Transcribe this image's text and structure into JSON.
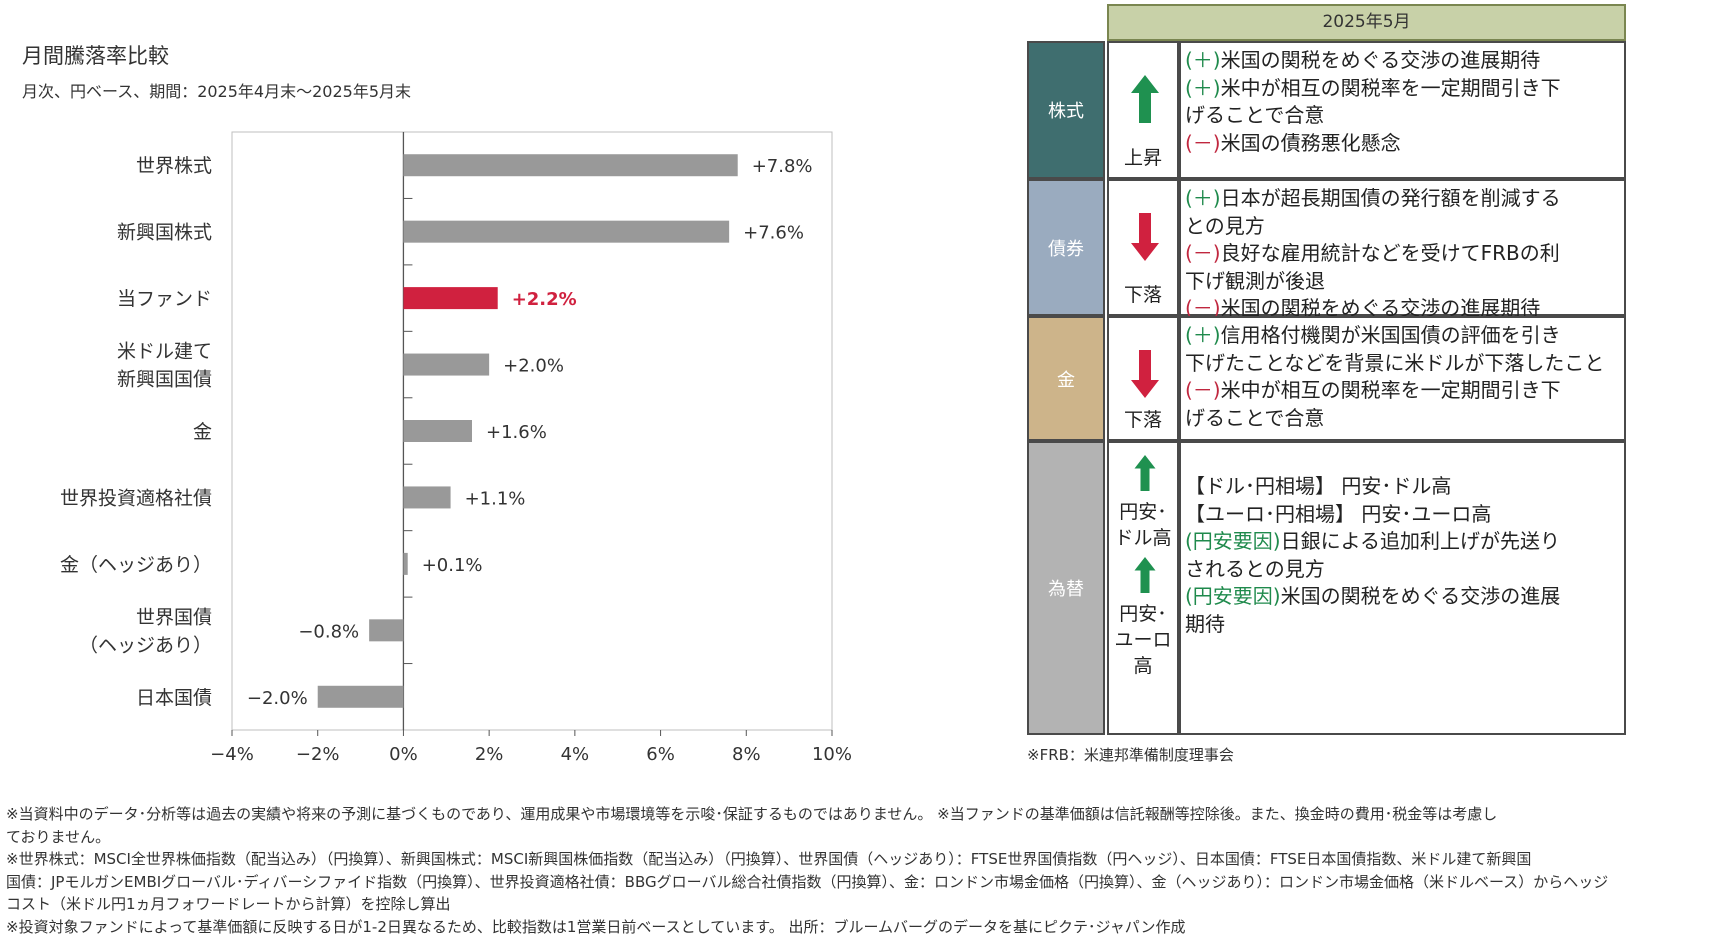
{
  "chart_data": {
    "type": "bar",
    "orientation": "horizontal",
    "title": "月間騰落率比較",
    "subtitle": "月次、円ベース、期間：2025年4月末～2025年5月末",
    "categories": [
      [
        "世界株式"
      ],
      [
        "新興国株式"
      ],
      [
        "当ファンド"
      ],
      [
        "米ドル建て",
        "新興国国債"
      ],
      [
        "金"
      ],
      [
        "世界投資適格社債"
      ],
      [
        "金（ヘッジあり）"
      ],
      [
        "世界国債",
        "（ヘッジあり）"
      ],
      [
        "日本国債"
      ]
    ],
    "values": [
      7.8,
      7.6,
      2.2,
      2.0,
      1.6,
      1.1,
      0.1,
      -0.8,
      -2.0
    ],
    "value_labels": [
      "+7.8%",
      "+7.6%",
      "+2.2%",
      "+2.0%",
      "+1.6%",
      "+1.1%",
      "+0.1%",
      "−0.8%",
      "−2.0%"
    ],
    "highlight_index": 2,
    "colors": {
      "bar": "#999999",
      "highlight": "#d0213f",
      "axis": "#555555",
      "grid": "#bfbfbf"
    },
    "xlim": [
      -4,
      10
    ],
    "xticks": [
      -4,
      -2,
      0,
      2,
      4,
      6,
      8,
      10
    ],
    "xtick_labels": [
      "−4%",
      "−2%",
      "0%",
      "2%",
      "4%",
      "6%",
      "8%",
      "10%"
    ],
    "grid": false
  },
  "table": {
    "header": "2025年5月",
    "rows": [
      {
        "category": "株式",
        "color": "#3f6e6f",
        "direction": "up",
        "direction_label": "上昇",
        "lines": [
          {
            "mark": "(＋)",
            "type": "plus",
            "text": "米国の関税をめぐる交渉の進展期待"
          },
          {
            "mark": "(＋)",
            "type": "plus",
            "text": "米中が相互の関税率を一定期間引き下"
          },
          {
            "mark": "",
            "type": "none",
            "text": "げることで合意"
          },
          {
            "mark": "(－)",
            "type": "minus",
            "text": "米国の債務悪化懸念"
          }
        ]
      },
      {
        "category": "債券",
        "color": "#9aabbf",
        "direction": "down",
        "direction_label": "下落",
        "lines": [
          {
            "mark": "(＋)",
            "type": "plus",
            "text": "日本が超長期国債の発行額を削減する"
          },
          {
            "mark": "",
            "type": "none",
            "text": "との見方"
          },
          {
            "mark": "(－)",
            "type": "minus",
            "text": "良好な雇用統計などを受けてFRBの利"
          },
          {
            "mark": "",
            "type": "none",
            "text": "下げ観測が後退"
          },
          {
            "mark": "(－)",
            "type": "minus",
            "text": "米国の関税をめぐる交渉の進展期待"
          }
        ]
      },
      {
        "category": "金",
        "color": "#cdb48a",
        "direction": "down",
        "direction_label": "下落",
        "lines": [
          {
            "mark": "(＋)",
            "type": "plus",
            "text": "信用格付機関が米国国債の評価を引き"
          },
          {
            "mark": "",
            "type": "none",
            "text": "下げたことなどを背景に米ドルが下落したこと"
          },
          {
            "mark": "(－)",
            "type": "minus",
            "text": "米中が相互の関税率を一定期間引き下"
          },
          {
            "mark": "",
            "type": "none",
            "text": "げることで合意"
          }
        ]
      },
      {
        "category": "為替",
        "color": "#b3b3b3",
        "direction_items": [
          {
            "direction": "up",
            "label_lines": [
              "円安･",
              "ドル高"
            ]
          },
          {
            "direction": "up",
            "label_lines": [
              "円安･",
              "ユーロ",
              "高"
            ]
          }
        ],
        "lines": [
          {
            "mark": "",
            "type": "none",
            "text": "【ドル･円相場】 円安･ドル高"
          },
          {
            "mark": "",
            "type": "none",
            "text": "【ユーロ･円相場】 円安･ユーロ高"
          },
          {
            "mark": "(円安要因)",
            "type": "plus",
            "text": "日銀による追加利上げが先送り"
          },
          {
            "mark": "",
            "type": "none",
            "text": "されるとの見方"
          },
          {
            "mark": "(円安要因)",
            "type": "plus",
            "text": "米国の関税をめぐる交渉の進展"
          },
          {
            "mark": "",
            "type": "none",
            "text": "期待"
          }
        ]
      }
    ],
    "arrow_colors": {
      "up": "#1f9150",
      "down": "#d0213f"
    }
  },
  "footnote_frb": "※FRB：米連邦準備制度理事会",
  "notes": [
    "※当資料中のデータ･分析等は過去の実績や将来の予測に基づくものであり、運用成果や市場環境等を示唆･保証するものではありません。 ※当ファンドの基準価額は信託報酬等控除後。また、換金時の費用･税金等は考慮し",
    "ておりません。",
    "※世界株式：MSCI全世界株価指数（配当込み）（円換算）、新興国株式：MSCI新興国株価指数（配当込み）（円換算）、世界国債（ヘッジあり）：FTSE世界国債指数（円ヘッジ）、日本国債：FTSE日本国債指数、米ドル建て新興国",
    "国債：JPモルガンEMBIグローバル･ディバーシファイド指数（円換算）、世界投資適格社債：BBGグローバル総合社債指数（円換算）、金：ロンドン市場金価格（円換算）、金（ヘッジあり）：ロンドン市場金価格（米ドルベース）からヘッジ",
    "コスト（米ドル円1ヵ月フォワードレートから計算）を控除し算出",
    "※投資対象ファンドによって基準価額に反映する日が1-2日異なるため、比較指数は1営業日前ベースとしています。 出所：ブルームバーグのデータを基にピクテ･ジャパン作成"
  ]
}
